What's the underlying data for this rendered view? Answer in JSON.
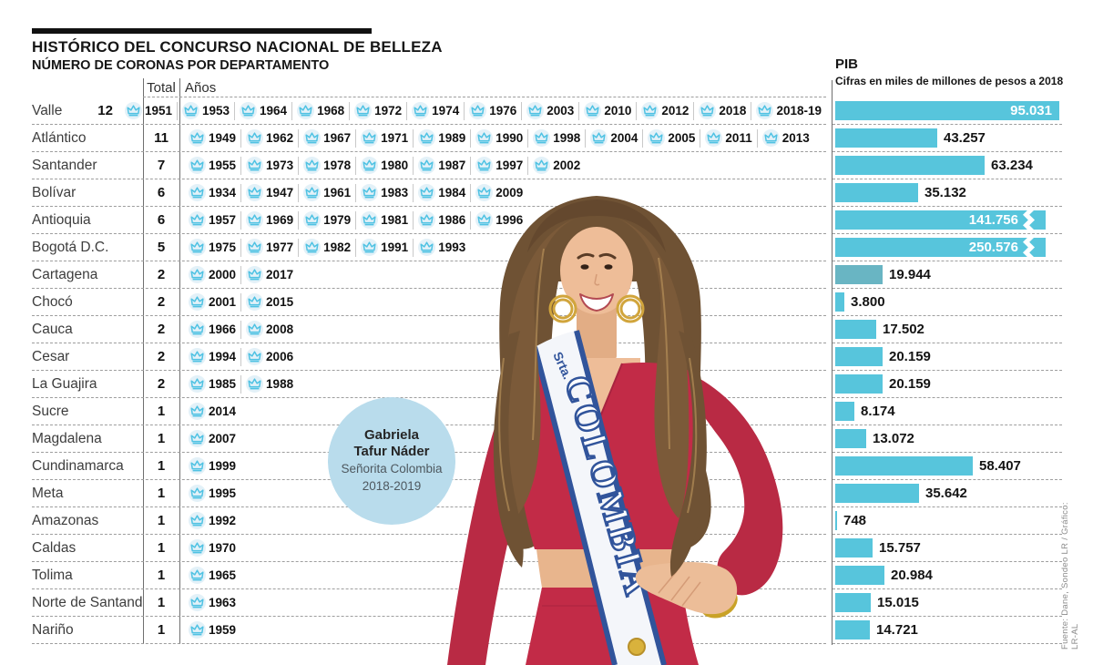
{
  "header": {
    "title": "HISTÓRICO DEL CONCURSO NACIONAL DE BELLEZA",
    "subtitle": "NÚMERO DE CORONAS POR DEPARTAMENTO",
    "col_total": "Total",
    "col_years": "Años"
  },
  "table": {
    "rows": [
      {
        "department": "Valle",
        "total": 12,
        "years": [
          "1951",
          "1953",
          "1964",
          "1968",
          "1972",
          "1974",
          "1976",
          "2003",
          "2010",
          "2012",
          "2018",
          "2018-19"
        ]
      },
      {
        "department": "Atlántico",
        "total": 11,
        "years": [
          "1949",
          "1962",
          "1967",
          "1971",
          "1989",
          "1990",
          "1998",
          "2004",
          "2005",
          "2011",
          "2013"
        ]
      },
      {
        "department": "Santander",
        "total": 7,
        "years": [
          "1955",
          "1973",
          "1978",
          "1980",
          "1987",
          "1997",
          "2002"
        ]
      },
      {
        "department": "Bolívar",
        "total": 6,
        "years": [
          "1934",
          "1947",
          "1961",
          "1983",
          "1984",
          "2009"
        ]
      },
      {
        "department": "Antioquia",
        "total": 6,
        "years": [
          "1957",
          "1969",
          "1979",
          "1981",
          "1986",
          "1996"
        ]
      },
      {
        "department": "Bogotá D.C.",
        "total": 5,
        "years": [
          "1975",
          "1977",
          "1982",
          "1991",
          "1993"
        ]
      },
      {
        "department": "Cartagena",
        "total": 2,
        "years": [
          "2000",
          "2017"
        ]
      },
      {
        "department": "Chocó",
        "total": 2,
        "years": [
          "2001",
          "2015"
        ]
      },
      {
        "department": "Cauca",
        "total": 2,
        "years": [
          "1966",
          "2008"
        ]
      },
      {
        "department": "Cesar",
        "total": 2,
        "years": [
          "1994",
          "2006"
        ]
      },
      {
        "department": "La Guajira",
        "total": 2,
        "years": [
          "1985",
          "1988"
        ]
      },
      {
        "department": "Sucre",
        "total": 1,
        "years": [
          "2014"
        ]
      },
      {
        "department": "Magdalena",
        "total": 1,
        "years": [
          "2007"
        ]
      },
      {
        "department": "Cundinamarca",
        "total": 1,
        "years": [
          "1999"
        ]
      },
      {
        "department": "Meta",
        "total": 1,
        "years": [
          "1995"
        ]
      },
      {
        "department": "Amazonas",
        "total": 1,
        "years": [
          "1992"
        ]
      },
      {
        "department": "Caldas",
        "total": 1,
        "years": [
          "1970"
        ]
      },
      {
        "department": "Tolima",
        "total": 1,
        "years": [
          "1965"
        ]
      },
      {
        "department": "Norte de Santander",
        "total": 1,
        "years": [
          "1963"
        ]
      },
      {
        "department": "Nariño",
        "total": 1,
        "years": [
          "1959"
        ]
      }
    ]
  },
  "chart_data": {
    "type": "bar",
    "orientation": "horizontal",
    "title": "PIB",
    "subtitle": "Cifras en miles de millones de pesos a 2018",
    "categories": [
      "Valle",
      "Atlántico",
      "Santander",
      "Bolívar",
      "Antioquia",
      "Bogotá D.C.",
      "Cartagena",
      "Chocó",
      "Cauca",
      "Cesar",
      "La Guajira",
      "Sucre",
      "Magdalena",
      "Cundinamarca",
      "Meta",
      "Amazonas",
      "Caldas",
      "Tolima",
      "Norte de Santander",
      "Nariño"
    ],
    "values": [
      95031,
      43257,
      63234,
      35132,
      141756,
      250576,
      19944,
      3800,
      17502,
      20159,
      20159,
      8174,
      13072,
      58407,
      35642,
      748,
      15757,
      20984,
      15015,
      14721
    ],
    "value_labels": [
      "95.031",
      "43.257",
      "63.234",
      "35.132",
      "141.756",
      "250.576",
      "19.944",
      "3.800",
      "17.502",
      "20.159",
      "20.159",
      "8.174",
      "13.072",
      "58.407",
      "35.642",
      "748",
      "15.757",
      "20.984",
      "15.015",
      "14.721"
    ],
    "xlim": [
      0,
      95031
    ],
    "labels_inside": [
      0,
      4,
      5
    ],
    "overflow_breaks": [
      4,
      5
    ],
    "muted_bars": [
      6
    ],
    "grid": "dashed-row-separators",
    "legend": "none",
    "bar_color": "#57c5dc",
    "bar_color_muted": "#69b5c3"
  },
  "badge": {
    "line1": "Gabriela",
    "line2": "Tafur Náder",
    "line3": "Señorita Colombia",
    "line4": "2018-2019"
  },
  "photo": {
    "sash_small": "Srta.",
    "sash_text": "COLOMBIA"
  },
  "source": "Fuente: Dane, Sondeo LR / Gráfico: LR-AL",
  "colors": {
    "accent_teal": "#57c5dc",
    "muted_teal": "#69b5c3",
    "crown_blue": "#4fc2e3",
    "crown_bg": "#e3f1f8",
    "badge_bg": "#b9dcec",
    "dress_red": "#c22b47",
    "sash_navy": "#31549b",
    "rule_black": "#111111"
  }
}
